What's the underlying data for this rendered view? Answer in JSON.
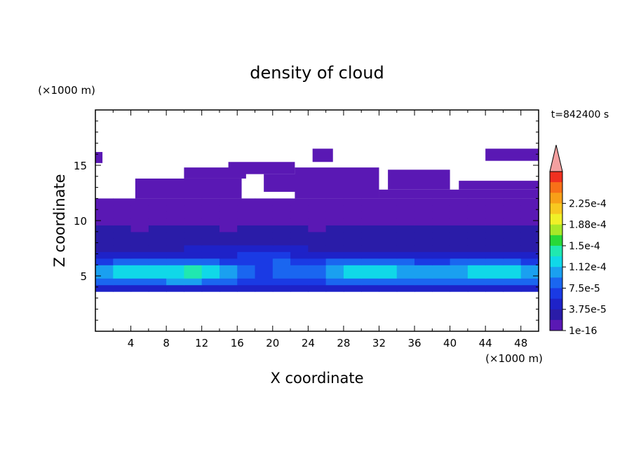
{
  "chart_data": {
    "type": "heatmap",
    "title": "density of cloud",
    "xlabel": "X coordinate",
    "ylabel": "Z coordinate",
    "x_unit": "(×1000 m)",
    "y_unit": "(×1000 m)",
    "time_label": "t=842400 s",
    "xlim": [
      0,
      50
    ],
    "ylim": [
      0,
      20
    ],
    "x_ticks": [
      "4",
      "8",
      "12",
      "16",
      "20",
      "24",
      "28",
      "32",
      "36",
      "40",
      "44",
      "48"
    ],
    "y_ticks": [
      "5",
      "10",
      "15"
    ],
    "colorbar": {
      "labels": [
        "1e-16",
        "3.75e-5",
        "7.5e-5",
        "1.12e-4",
        "1.5e-4",
        "1.88e-4",
        "2.25e-4"
      ],
      "levels": [
        1e-16,
        1.875e-05,
        3.75e-05,
        5.625e-05,
        7.5e-05,
        9.375e-05,
        0.0001125,
        0.00013125,
        0.00015,
        0.00016875,
        0.0001875,
        0.00020625,
        0.000225,
        0.00024375
      ],
      "colors": [
        "#5a18b4",
        "#2a1ca8",
        "#1e22c8",
        "#1a3ae4",
        "#1a66f0",
        "#1aa0f0",
        "#10d8e8",
        "#20e8b0",
        "#28d838",
        "#a8e828",
        "#f0f028",
        "#f8c820",
        "#f8a018",
        "#f87018",
        "#f03020"
      ],
      "overflow_color": "#f4a0a0"
    },
    "cloud_field": {
      "z_levels": [
        3.6,
        4.2,
        4.8,
        5.4,
        6.0,
        6.6,
        7.2,
        7.8,
        8.4,
        9.0,
        9.6,
        10.2,
        10.8,
        11.4,
        12.0
      ],
      "x_values": [
        0,
        2,
        4,
        6,
        8,
        10,
        12,
        14,
        16,
        18,
        20,
        22,
        24,
        26,
        28,
        30,
        32,
        34,
        36,
        38,
        40,
        42,
        44,
        46,
        48,
        50
      ],
      "values": [
        [
          4e-05,
          4e-05,
          4e-05,
          4e-05,
          4e-05,
          4e-05,
          4e-05,
          4e-05,
          4e-05,
          3e-05,
          3e-05,
          4e-05,
          3e-05,
          4e-05,
          4e-05,
          4e-05,
          4e-05,
          4e-05,
          4e-05,
          4e-05,
          4e-05,
          4e-05,
          4e-05,
          4e-05,
          4e-05,
          4e-05
        ],
        [
          6e-05,
          7e-05,
          7e-05,
          7e-05,
          7e-05,
          7e-05,
          7e-05,
          7e-05,
          6e-05,
          5e-05,
          5e-05,
          6e-05,
          5e-05,
          6e-05,
          7e-05,
          7e-05,
          7e-05,
          7e-05,
          7e-05,
          6e-05,
          7e-05,
          7e-05,
          7e-05,
          7e-05,
          7e-05,
          6e-05
        ],
        [
          9e-05,
          0.00011,
          0.000115,
          0.000115,
          0.000115,
          0.00012,
          0.00012,
          0.00011,
          8e-05,
          6e-05,
          7e-05,
          9e-05,
          7e-05,
          9e-05,
          0.00011,
          0.000115,
          0.000115,
          0.00011,
          0.0001,
          9e-05,
          0.0001,
          0.00011,
          0.000115,
          0.000115,
          0.00011,
          9e-05
        ],
        [
          0.0001,
          0.00013,
          0.00014,
          0.00013,
          0.000135,
          0.000145,
          0.000155,
          0.00013,
          9e-05,
          7e-05,
          8e-05,
          0.0001,
          8e-05,
          0.0001,
          0.00012,
          0.00013,
          0.000135,
          0.000125,
          0.00011,
          0.0001,
          0.00011,
          0.00012,
          0.00013,
          0.000135,
          0.00012,
          0.0001
        ],
        [
          8e-05,
          0.0001,
          0.00011,
          0.000105,
          0.00011,
          0.00012,
          0.000125,
          0.000105,
          8e-05,
          6e-05,
          7e-05,
          9e-05,
          7e-05,
          9e-05,
          0.0001,
          0.00011,
          0.00011,
          0.0001,
          9e-05,
          9e-05,
          9e-05,
          0.0001,
          0.00011,
          0.00011,
          0.0001,
          8e-05
        ],
        [
          5e-05,
          6e-05,
          6e-05,
          6e-05,
          6e-05,
          6e-05,
          6e-05,
          6e-05,
          5e-05,
          7e-05,
          8e-05,
          6e-05,
          5e-05,
          5e-05,
          6e-05,
          6e-05,
          6e-05,
          6e-05,
          5e-05,
          5e-05,
          5e-05,
          6e-05,
          6e-05,
          6e-05,
          6e-05,
          5e-05
        ],
        [
          4e-05,
          4e-05,
          4e-05,
          4e-05,
          4e-05,
          4e-05,
          5e-05,
          5e-05,
          5e-05,
          6e-05,
          6e-05,
          5e-05,
          4e-05,
          4e-05,
          4e-05,
          4e-05,
          4e-05,
          4e-05,
          4e-05,
          4e-05,
          4e-05,
          4e-05,
          4e-05,
          4e-05,
          4e-05,
          4e-05
        ],
        [
          3e-05,
          3e-05,
          3e-05,
          3e-05,
          3e-05,
          3e-05,
          3e-05,
          3e-05,
          3e-05,
          4e-05,
          4e-05,
          3e-05,
          3e-05,
          3e-05,
          3e-05,
          3e-05,
          3e-05,
          3e-05,
          3e-05,
          3e-05,
          3e-05,
          3e-05,
          3e-05,
          3e-05,
          3e-05,
          3e-05
        ],
        [
          2.5e-05,
          2.5e-05,
          2.5e-05,
          2.5e-05,
          2.5e-05,
          2.5e-05,
          2.5e-05,
          2.5e-05,
          2.5e-05,
          2.5e-05,
          2.5e-05,
          2.5e-05,
          2.5e-05,
          2.5e-05,
          2.5e-05,
          2.5e-05,
          2.5e-05,
          2.5e-05,
          2.5e-05,
          2.5e-05,
          2.5e-05,
          2.5e-05,
          2.5e-05,
          2.5e-05,
          2.5e-05,
          2.5e-05
        ],
        [
          2e-05,
          2e-05,
          2e-05,
          2e-05,
          2e-05,
          2e-05,
          2e-05,
          2e-05,
          2e-05,
          2e-05,
          2e-05,
          2e-05,
          2e-05,
          2e-05,
          2e-05,
          2e-05,
          2e-05,
          2e-05,
          2e-05,
          2e-05,
          2e-05,
          2e-05,
          2e-05,
          2e-05,
          2e-05,
          2e-05
        ],
        [
          2e-05,
          2e-05,
          1.5e-05,
          1.5e-05,
          2e-05,
          2e-05,
          2e-05,
          1.5e-05,
          1.5e-05,
          2e-05,
          2e-05,
          2e-05,
          1.5e-05,
          1.5e-05,
          2e-05,
          2e-05,
          2e-05,
          2e-05,
          2e-05,
          2e-05,
          2e-05,
          2e-05,
          1.5e-05,
          2e-05,
          2e-05,
          2e-05
        ],
        [
          1e-05,
          1e-05,
          1e-05,
          1e-05,
          1e-05,
          1e-05,
          1e-05,
          1e-05,
          1e-05,
          1e-05,
          1e-05,
          1e-05,
          1e-05,
          1e-05,
          1e-05,
          1e-05,
          1e-05,
          1e-05,
          1e-05,
          1e-05,
          1e-05,
          1e-05,
          1e-05,
          1e-05,
          1e-05,
          1e-05
        ],
        [
          8e-06,
          8e-06,
          8e-06,
          8e-06,
          8e-06,
          8e-06,
          8e-06,
          8e-06,
          8e-06,
          8e-06,
          8e-06,
          8e-06,
          8e-06,
          8e-06,
          8e-06,
          8e-06,
          8e-06,
          8e-06,
          8e-06,
          8e-06,
          8e-06,
          8e-06,
          8e-06,
          8e-06,
          8e-06,
          8e-06
        ],
        [
          5e-06,
          5e-06,
          5e-06,
          5e-06,
          5e-06,
          5e-06,
          5e-06,
          5e-06,
          5e-06,
          5e-06,
          5e-06,
          5e-06,
          5e-06,
          5e-06,
          5e-06,
          5e-06,
          5e-06,
          5e-06,
          5e-06,
          5e-06,
          5e-06,
          5e-06,
          5e-06,
          5e-06,
          5e-06,
          5e-06
        ],
        [
          3e-06,
          3e-06,
          3e-06,
          3e-06,
          3e-06,
          3e-06,
          3e-06,
          3e-06,
          3e-06,
          3e-06,
          3e-06,
          3e-06,
          3e-06,
          3e-06,
          3e-06,
          3e-06,
          3e-06,
          3e-06,
          3e-06,
          3e-06,
          3e-06,
          3e-06,
          3e-06,
          3e-06,
          3e-06,
          3e-06
        ]
      ],
      "upper_patches": [
        {
          "x_range": [
            0,
            0.8
          ],
          "z_range": [
            15.2,
            16.2
          ]
        },
        {
          "x_range": [
            4.5,
            16.5
          ],
          "z_range": [
            12.0,
            13.8
          ]
        },
        {
          "x_range": [
            10,
            17
          ],
          "z_range": [
            13.8,
            14.8
          ]
        },
        {
          "x_range": [
            15,
            22.5
          ],
          "z_range": [
            14.2,
            15.3
          ]
        },
        {
          "x_range": [
            19,
            23
          ],
          "z_range": [
            12.6,
            14.2
          ]
        },
        {
          "x_range": [
            22.5,
            32
          ],
          "z_range": [
            12.0,
            14.8
          ]
        },
        {
          "x_range": [
            24.5,
            26.8
          ],
          "z_range": [
            15.3,
            16.5
          ]
        },
        {
          "x_range": [
            32,
            50
          ],
          "z_range": [
            12.0,
            12.8
          ]
        },
        {
          "x_range": [
            33,
            40
          ],
          "z_range": [
            12.8,
            14.6
          ]
        },
        {
          "x_range": [
            41,
            50
          ],
          "z_range": [
            12.8,
            13.6
          ]
        },
        {
          "x_range": [
            44,
            50
          ],
          "z_range": [
            15.4,
            16.5
          ]
        }
      ]
    }
  }
}
